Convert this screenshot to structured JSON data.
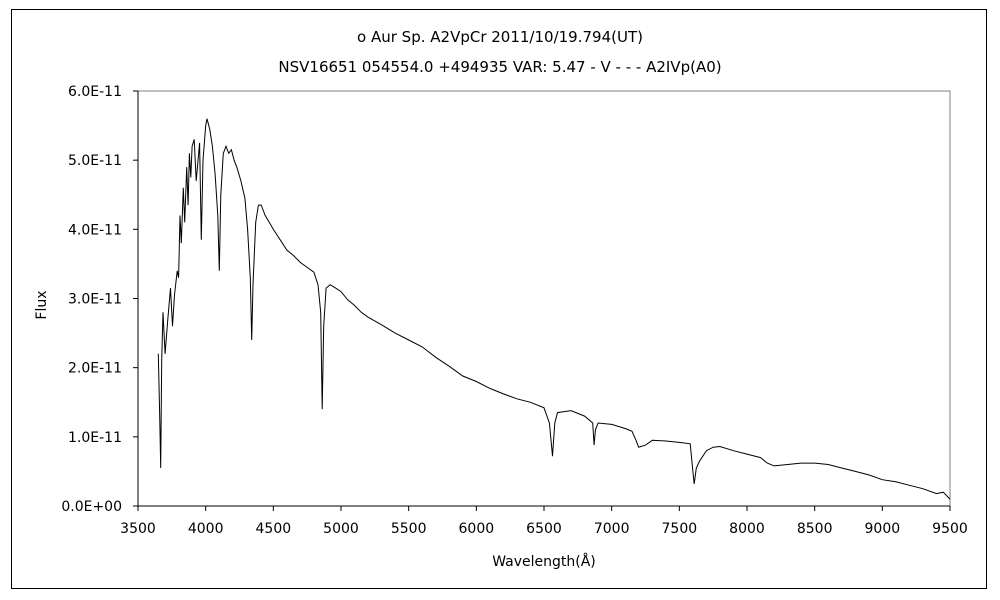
{
  "chart_data": {
    "type": "line",
    "title_line1": "ο  Aur    Sp. A2VpCr    2011/10/19.794(UT)",
    "title_line2": "NSV16651 054554.0 +494935 VAR: 5.47 - V - - - A2IVp(A0)",
    "xlabel": "Wavelength(Å)",
    "ylabel": "Flux",
    "xlim": [
      3500,
      9500
    ],
    "ylim": [
      0,
      6e-11
    ],
    "x_ticks": [
      "3500",
      "4000",
      "4500",
      "5000",
      "5500",
      "6000",
      "6500",
      "7000",
      "7500",
      "8000",
      "8500",
      "9000",
      "9500"
    ],
    "y_ticks": [
      "0.0E+00",
      "1.0E-11",
      "2.0E-11",
      "3.0E-11",
      "4.0E-11",
      "5.0E-11",
      "6.0E-11"
    ],
    "grid": false,
    "legend": "none",
    "line_color": "#000000",
    "series": [
      {
        "unit_y": "1e-11",
        "points": [
          [
            3650,
            2.2
          ],
          [
            3660,
            1.3
          ],
          [
            3668,
            0.55
          ],
          [
            3675,
            2.1
          ],
          [
            3685,
            2.8
          ],
          [
            3700,
            2.2
          ],
          [
            3720,
            2.7
          ],
          [
            3740,
            3.15
          ],
          [
            3755,
            2.6
          ],
          [
            3770,
            3.05
          ],
          [
            3790,
            3.4
          ],
          [
            3800,
            3.3
          ],
          [
            3810,
            4.2
          ],
          [
            3820,
            3.8
          ],
          [
            3835,
            4.6
          ],
          [
            3845,
            4.1
          ],
          [
            3860,
            4.9
          ],
          [
            3870,
            4.35
          ],
          [
            3880,
            5.1
          ],
          [
            3890,
            4.75
          ],
          [
            3900,
            5.2
          ],
          [
            3915,
            5.3
          ],
          [
            3930,
            4.7
          ],
          [
            3955,
            5.25
          ],
          [
            3968,
            3.85
          ],
          [
            3980,
            5.0
          ],
          [
            4000,
            5.5
          ],
          [
            4010,
            5.6
          ],
          [
            4030,
            5.45
          ],
          [
            4050,
            5.2
          ],
          [
            4070,
            4.8
          ],
          [
            4090,
            4.2
          ],
          [
            4101,
            3.4
          ],
          [
            4112,
            4.5
          ],
          [
            4130,
            5.1
          ],
          [
            4150,
            5.2
          ],
          [
            4170,
            5.1
          ],
          [
            4190,
            5.15
          ],
          [
            4210,
            5.0
          ],
          [
            4230,
            4.9
          ],
          [
            4260,
            4.7
          ],
          [
            4290,
            4.45
          ],
          [
            4310,
            4.0
          ],
          [
            4330,
            3.3
          ],
          [
            4340,
            2.4
          ],
          [
            4350,
            3.2
          ],
          [
            4370,
            4.1
          ],
          [
            4390,
            4.35
          ],
          [
            4410,
            4.35
          ],
          [
            4440,
            4.2
          ],
          [
            4470,
            4.1
          ],
          [
            4500,
            4.0
          ],
          [
            4550,
            3.85
          ],
          [
            4600,
            3.7
          ],
          [
            4650,
            3.62
          ],
          [
            4700,
            3.52
          ],
          [
            4750,
            3.45
          ],
          [
            4800,
            3.38
          ],
          [
            4830,
            3.2
          ],
          [
            4850,
            2.8
          ],
          [
            4861,
            1.4
          ],
          [
            4872,
            2.6
          ],
          [
            4890,
            3.15
          ],
          [
            4920,
            3.2
          ],
          [
            4960,
            3.15
          ],
          [
            5000,
            3.1
          ],
          [
            5050,
            2.98
          ],
          [
            5100,
            2.9
          ],
          [
            5150,
            2.8
          ],
          [
            5200,
            2.73
          ],
          [
            5300,
            2.62
          ],
          [
            5400,
            2.5
          ],
          [
            5500,
            2.4
          ],
          [
            5600,
            2.3
          ],
          [
            5700,
            2.15
          ],
          [
            5800,
            2.02
          ],
          [
            5900,
            1.88
          ],
          [
            6000,
            1.8
          ],
          [
            6100,
            1.7
          ],
          [
            6200,
            1.62
          ],
          [
            6300,
            1.55
          ],
          [
            6400,
            1.5
          ],
          [
            6500,
            1.42
          ],
          [
            6540,
            1.2
          ],
          [
            6563,
            0.72
          ],
          [
            6580,
            1.2
          ],
          [
            6600,
            1.35
          ],
          [
            6700,
            1.38
          ],
          [
            6800,
            1.3
          ],
          [
            6860,
            1.2
          ],
          [
            6870,
            0.88
          ],
          [
            6880,
            1.1
          ],
          [
            6900,
            1.2
          ],
          [
            7000,
            1.18
          ],
          [
            7100,
            1.12
          ],
          [
            7150,
            1.08
          ],
          [
            7180,
            0.95
          ],
          [
            7200,
            0.85
          ],
          [
            7250,
            0.88
          ],
          [
            7300,
            0.95
          ],
          [
            7400,
            0.94
          ],
          [
            7500,
            0.92
          ],
          [
            7580,
            0.9
          ],
          [
            7600,
            0.5
          ],
          [
            7610,
            0.32
          ],
          [
            7625,
            0.55
          ],
          [
            7650,
            0.65
          ],
          [
            7700,
            0.8
          ],
          [
            7750,
            0.85
          ],
          [
            7800,
            0.86
          ],
          [
            7900,
            0.8
          ],
          [
            8000,
            0.75
          ],
          [
            8100,
            0.7
          ],
          [
            8150,
            0.62
          ],
          [
            8200,
            0.58
          ],
          [
            8300,
            0.6
          ],
          [
            8400,
            0.62
          ],
          [
            8500,
            0.62
          ],
          [
            8600,
            0.6
          ],
          [
            8700,
            0.55
          ],
          [
            8800,
            0.5
          ],
          [
            8900,
            0.45
          ],
          [
            9000,
            0.38
          ],
          [
            9100,
            0.35
          ],
          [
            9200,
            0.3
          ],
          [
            9300,
            0.25
          ],
          [
            9400,
            0.18
          ],
          [
            9450,
            0.2
          ],
          [
            9500,
            0.1
          ]
        ]
      }
    ]
  }
}
